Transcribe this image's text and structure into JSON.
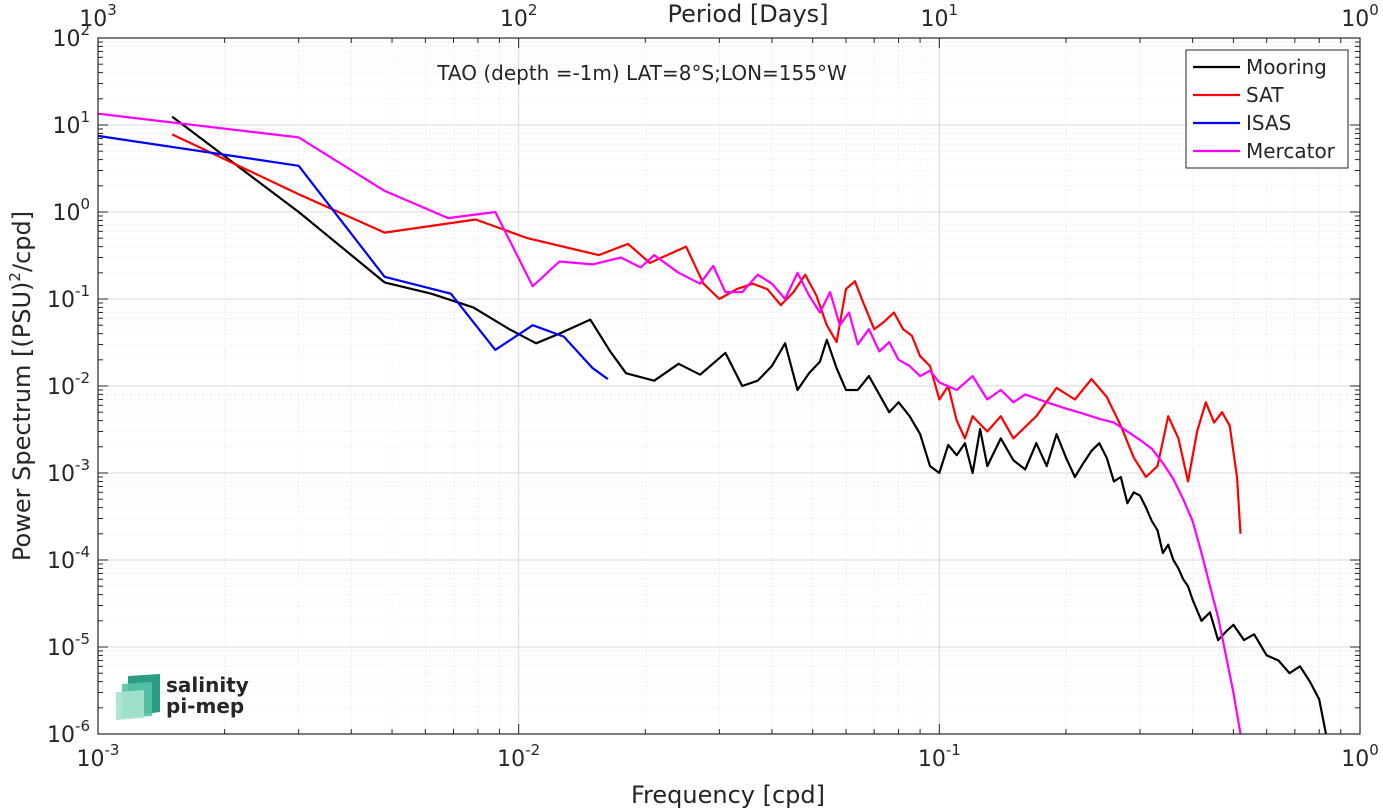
{
  "chart_data": {
    "type": "line",
    "scale": {
      "x": "log",
      "y": "log"
    },
    "xlim": [
      0.001,
      1
    ],
    "ylim": [
      1e-06,
      100
    ],
    "xlabel": "Frequency [cpd]",
    "ylabel": "Power Spectrum [(PSU)²/cpd]",
    "ylabel_parts": {
      "main": "Power Spectrum [(PSU)",
      "sup": "2",
      "tail": "/cpd]"
    },
    "top_axis": {
      "label": "Period [Days]",
      "tick_bases": [
        "10",
        "10",
        "10",
        "10"
      ],
      "tick_exponents": [
        "3",
        "2",
        "1",
        "0"
      ]
    },
    "x_ticks": {
      "bases": [
        "10",
        "10",
        "10",
        "10"
      ],
      "exponents": [
        "-3",
        "-2",
        "-1",
        "0"
      ]
    },
    "y_ticks": {
      "bases": [
        "10",
        "10",
        "10",
        "10",
        "10",
        "10",
        "10",
        "10",
        "10"
      ],
      "exponents": [
        "-6",
        "-5",
        "-4",
        "-3",
        "-2",
        "-1",
        "0",
        "1",
        "2"
      ]
    },
    "grid": true,
    "minor_grid": true,
    "legend": {
      "placement": "top-right"
    },
    "annotation": "TAO (depth =-1m) LAT=8°S;LON=155°W",
    "logo": {
      "line1": "salinity",
      "line2": "pi-mep"
    },
    "series": [
      {
        "name": "Mooring",
        "color": "#000000",
        "points": [
          [
            0.0015,
            12.5
          ],
          [
            0.003,
            1.0
          ],
          [
            0.0048,
            0.155
          ],
          [
            0.0062,
            0.115
          ],
          [
            0.0078,
            0.08
          ],
          [
            0.0095,
            0.045
          ],
          [
            0.011,
            0.031
          ],
          [
            0.0125,
            0.04
          ],
          [
            0.0148,
            0.058
          ],
          [
            0.0165,
            0.025
          ],
          [
            0.018,
            0.014
          ],
          [
            0.021,
            0.0115
          ],
          [
            0.024,
            0.018
          ],
          [
            0.027,
            0.0135
          ],
          [
            0.031,
            0.024
          ],
          [
            0.034,
            0.01
          ],
          [
            0.037,
            0.0115
          ],
          [
            0.04,
            0.017
          ],
          [
            0.043,
            0.031
          ],
          [
            0.046,
            0.009
          ],
          [
            0.049,
            0.014
          ],
          [
            0.052,
            0.019
          ],
          [
            0.054,
            0.034
          ],
          [
            0.057,
            0.016
          ],
          [
            0.06,
            0.009
          ],
          [
            0.064,
            0.009
          ],
          [
            0.068,
            0.013
          ],
          [
            0.072,
            0.008
          ],
          [
            0.076,
            0.005
          ],
          [
            0.08,
            0.0065
          ],
          [
            0.085,
            0.0045
          ],
          [
            0.09,
            0.0028
          ],
          [
            0.095,
            0.0012
          ],
          [
            0.1,
            0.001
          ],
          [
            0.105,
            0.0021
          ],
          [
            0.11,
            0.0016
          ],
          [
            0.115,
            0.0022
          ],
          [
            0.12,
            0.001
          ],
          [
            0.125,
            0.0032
          ],
          [
            0.13,
            0.0012
          ],
          [
            0.14,
            0.0025
          ],
          [
            0.15,
            0.0014
          ],
          [
            0.16,
            0.0011
          ],
          [
            0.17,
            0.0022
          ],
          [
            0.18,
            0.0012
          ],
          [
            0.19,
            0.0028
          ],
          [
            0.2,
            0.0015
          ],
          [
            0.21,
            0.0009
          ],
          [
            0.22,
            0.0013
          ],
          [
            0.23,
            0.0018
          ],
          [
            0.24,
            0.0022
          ],
          [
            0.25,
            0.0015
          ],
          [
            0.26,
            0.0008
          ],
          [
            0.27,
            0.0009
          ],
          [
            0.28,
            0.00045
          ],
          [
            0.29,
            0.0006
          ],
          [
            0.3,
            0.00055
          ],
          [
            0.31,
            0.0004
          ],
          [
            0.32,
            0.00028
          ],
          [
            0.33,
            0.00022
          ],
          [
            0.34,
            0.00012
          ],
          [
            0.35,
            0.00015
          ],
          [
            0.36,
            0.0001
          ],
          [
            0.37,
            8e-05
          ],
          [
            0.38,
            6e-05
          ],
          [
            0.39,
            5e-05
          ],
          [
            0.4,
            3.5e-05
          ],
          [
            0.42,
            2e-05
          ],
          [
            0.44,
            2.5e-05
          ],
          [
            0.46,
            1.2e-05
          ],
          [
            0.48,
            1.5e-05
          ],
          [
            0.5,
            1.8e-05
          ],
          [
            0.53,
            1.2e-05
          ],
          [
            0.56,
            1.4e-05
          ],
          [
            0.6,
            8e-06
          ],
          [
            0.64,
            7e-06
          ],
          [
            0.68,
            5e-06
          ],
          [
            0.72,
            6e-06
          ],
          [
            0.76,
            4e-06
          ],
          [
            0.8,
            2.5e-06
          ],
          [
            0.83,
            1e-06
          ]
        ]
      },
      {
        "name": "SAT",
        "color": "#ff0000",
        "points": [
          [
            0.0015,
            7.8
          ],
          [
            0.003,
            1.6
          ],
          [
            0.0048,
            0.58
          ],
          [
            0.0079,
            0.82
          ],
          [
            0.0105,
            0.5
          ],
          [
            0.0155,
            0.32
          ],
          [
            0.0182,
            0.43
          ],
          [
            0.0205,
            0.26
          ],
          [
            0.025,
            0.4
          ],
          [
            0.0275,
            0.15
          ],
          [
            0.03,
            0.1
          ],
          [
            0.033,
            0.13
          ],
          [
            0.036,
            0.15
          ],
          [
            0.039,
            0.13
          ],
          [
            0.042,
            0.085
          ],
          [
            0.045,
            0.12
          ],
          [
            0.048,
            0.19
          ],
          [
            0.051,
            0.11
          ],
          [
            0.054,
            0.05
          ],
          [
            0.057,
            0.032
          ],
          [
            0.06,
            0.13
          ],
          [
            0.063,
            0.16
          ],
          [
            0.066,
            0.09
          ],
          [
            0.07,
            0.045
          ],
          [
            0.074,
            0.055
          ],
          [
            0.078,
            0.07
          ],
          [
            0.082,
            0.045
          ],
          [
            0.086,
            0.038
          ],
          [
            0.09,
            0.022
          ],
          [
            0.095,
            0.017
          ],
          [
            0.1,
            0.007
          ],
          [
            0.105,
            0.01
          ],
          [
            0.11,
            0.004
          ],
          [
            0.115,
            0.0025
          ],
          [
            0.12,
            0.0045
          ],
          [
            0.13,
            0.003
          ],
          [
            0.14,
            0.0045
          ],
          [
            0.15,
            0.0025
          ],
          [
            0.17,
            0.0045
          ],
          [
            0.19,
            0.0095
          ],
          [
            0.21,
            0.007
          ],
          [
            0.23,
            0.012
          ],
          [
            0.25,
            0.0075
          ],
          [
            0.27,
            0.0035
          ],
          [
            0.29,
            0.0015
          ],
          [
            0.31,
            0.0009
          ],
          [
            0.33,
            0.0012
          ],
          [
            0.35,
            0.0045
          ],
          [
            0.37,
            0.0025
          ],
          [
            0.39,
            0.0008
          ],
          [
            0.41,
            0.003
          ],
          [
            0.43,
            0.0065
          ],
          [
            0.45,
            0.0038
          ],
          [
            0.47,
            0.005
          ],
          [
            0.49,
            0.0035
          ],
          [
            0.51,
            0.0009
          ],
          [
            0.52,
            0.0002
          ]
        ]
      },
      {
        "name": "ISAS",
        "color": "#0000ff",
        "points": [
          [
            0.001,
            7.5
          ],
          [
            0.003,
            3.4
          ],
          [
            0.0048,
            0.18
          ],
          [
            0.0069,
            0.115
          ],
          [
            0.0088,
            0.026
          ],
          [
            0.0108,
            0.05
          ],
          [
            0.0128,
            0.037
          ],
          [
            0.015,
            0.016
          ],
          [
            0.0163,
            0.012
          ]
        ]
      },
      {
        "name": "Mercator",
        "color": "#ff00ff",
        "points": [
          [
            0.001,
            13.5
          ],
          [
            0.003,
            7.2
          ],
          [
            0.0048,
            1.75
          ],
          [
            0.0068,
            0.85
          ],
          [
            0.0088,
            1.0
          ],
          [
            0.0108,
            0.14
          ],
          [
            0.0125,
            0.27
          ],
          [
            0.015,
            0.25
          ],
          [
            0.0175,
            0.3
          ],
          [
            0.0195,
            0.23
          ],
          [
            0.021,
            0.32
          ],
          [
            0.024,
            0.2
          ],
          [
            0.027,
            0.15
          ],
          [
            0.029,
            0.24
          ],
          [
            0.031,
            0.12
          ],
          [
            0.034,
            0.12
          ],
          [
            0.037,
            0.19
          ],
          [
            0.04,
            0.15
          ],
          [
            0.043,
            0.1
          ],
          [
            0.046,
            0.2
          ],
          [
            0.049,
            0.11
          ],
          [
            0.052,
            0.07
          ],
          [
            0.055,
            0.12
          ],
          [
            0.058,
            0.05
          ],
          [
            0.061,
            0.07
          ],
          [
            0.064,
            0.03
          ],
          [
            0.068,
            0.045
          ],
          [
            0.072,
            0.025
          ],
          [
            0.076,
            0.032
          ],
          [
            0.08,
            0.02
          ],
          [
            0.085,
            0.017
          ],
          [
            0.09,
            0.013
          ],
          [
            0.095,
            0.015
          ],
          [
            0.1,
            0.011
          ],
          [
            0.11,
            0.009
          ],
          [
            0.12,
            0.013
          ],
          [
            0.13,
            0.007
          ],
          [
            0.14,
            0.009
          ],
          [
            0.15,
            0.0065
          ],
          [
            0.16,
            0.008
          ],
          [
            0.18,
            0.0065
          ],
          [
            0.2,
            0.0055
          ],
          [
            0.22,
            0.0048
          ],
          [
            0.24,
            0.0042
          ],
          [
            0.26,
            0.0038
          ],
          [
            0.28,
            0.003
          ],
          [
            0.3,
            0.0024
          ],
          [
            0.32,
            0.0019
          ],
          [
            0.34,
            0.0013
          ],
          [
            0.36,
            0.00085
          ],
          [
            0.38,
            0.0005
          ],
          [
            0.4,
            0.00028
          ],
          [
            0.42,
            0.00012
          ],
          [
            0.44,
            5e-05
          ],
          [
            0.46,
            2.2e-05
          ],
          [
            0.48,
            8e-06
          ],
          [
            0.5,
            3e-06
          ],
          [
            0.52,
            1e-06
          ]
        ]
      }
    ]
  }
}
